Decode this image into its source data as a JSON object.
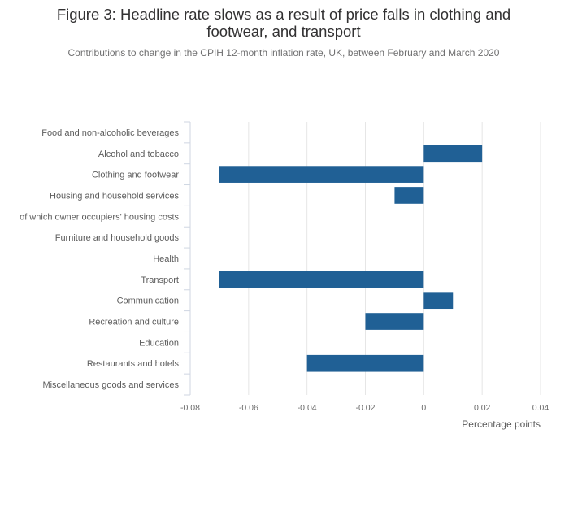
{
  "chart_data": {
    "type": "bar",
    "orientation": "horizontal",
    "title_lines": [
      "Figure 3: Headline rate slows as a result of price falls in clothing and",
      "footwear, and transport"
    ],
    "subtitle": "Contributions to change in the CPIH 12-month inflation rate, UK, between February and March 2020",
    "xlabel": "Percentage points",
    "xlim": [
      -0.08,
      0.04
    ],
    "xticks": [
      -0.08,
      -0.06,
      -0.04,
      -0.02,
      0,
      0.02,
      0.04
    ],
    "xtick_labels": [
      "-0.08",
      "-0.06",
      "-0.04",
      "-0.02",
      "0",
      "0.02",
      "0.04"
    ],
    "grid": true,
    "categories": [
      "Food and non-alcoholic beverages",
      "Alcohol and tobacco",
      "Clothing and footwear",
      "Housing and household services",
      "of which owner occupiers' housing costs",
      "Furniture and household goods",
      "Health",
      "Transport",
      "Communication",
      "Recreation and culture",
      "Education",
      "Restaurants and hotels",
      "Miscellaneous goods and services"
    ],
    "values": [
      0,
      0.02,
      -0.07,
      -0.01,
      0,
      0,
      0,
      -0.07,
      0.01,
      -0.02,
      0,
      -0.04,
      0
    ],
    "bar_color": "#206095",
    "grid_color": "#e6e6e6",
    "axis_color": "#cfd6e2"
  }
}
